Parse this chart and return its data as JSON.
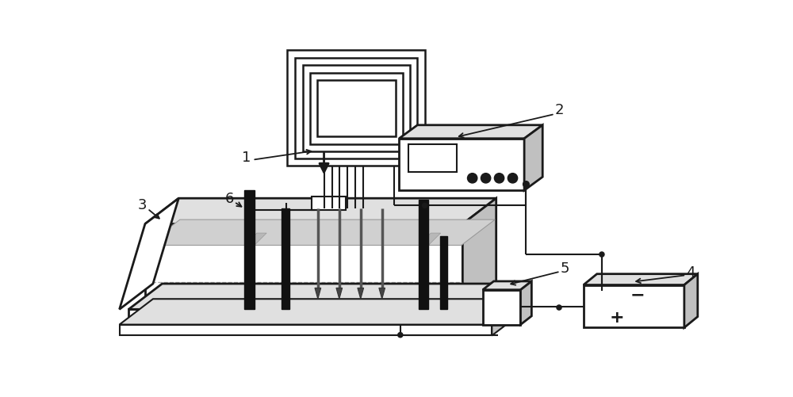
{
  "bg_color": "#ffffff",
  "lc": "#1a1a1a",
  "dark": "#111111",
  "gray": "#c0c0c0",
  "lgray": "#e0e0e0",
  "soil_gray": "#d0d0d0",
  "lw": 1.5
}
